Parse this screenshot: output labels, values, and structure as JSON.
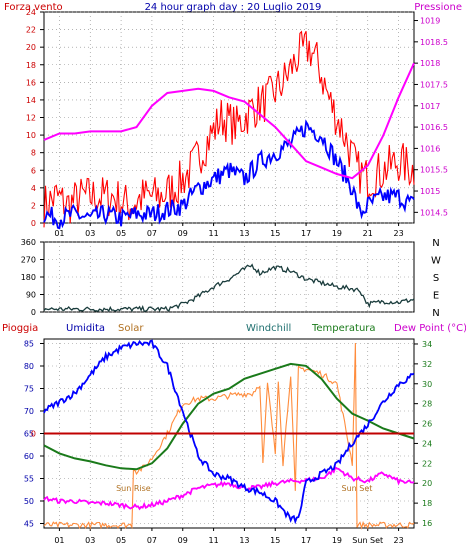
{
  "header": {
    "title": "24 hour graph day : 20 Luglio 2019",
    "left_label": "Forza vento",
    "right_label": "Pressione"
  },
  "compass_labels": [
    "N",
    "W",
    "S",
    "E",
    "N"
  ],
  "colors": {
    "frame": "#000000",
    "grid": "#888888",
    "wind": "#ff0000",
    "gust_avg": "#0000ff",
    "pressure": "#ff00ff",
    "direction": "#1a3c3c",
    "rain": "#c00000",
    "humidity": "#0000ff",
    "solar": "#ff8c3c",
    "windchill": "#207070",
    "temperature": "#1a7a1a",
    "dewpoint": "#ff00ff",
    "pioggia_label": "#cc0000",
    "umidita_label": "#0000aa",
    "solar_label": "#b07020",
    "windchill_label": "#207070",
    "temperatura_label": "#1a7a1a",
    "dewpoint_label": "#cc00cc"
  },
  "chart_data": [
    {
      "type": "line",
      "title": "24 hour graph day : 20 Luglio 2019",
      "x_tick_labels": [
        "01",
        "03",
        "05",
        "07",
        "09",
        "11",
        "13",
        "15",
        "17",
        "19",
        "21",
        "23"
      ],
      "x_range_hours": [
        0,
        24
      ],
      "left_axis": {
        "label": "Forza vento",
        "ticks": [
          "0",
          "2",
          "4",
          "6",
          "8",
          "10",
          "12",
          "14",
          "16",
          "18",
          "20",
          "22",
          "24"
        ],
        "range": [
          0,
          24
        ]
      },
      "right_axis": {
        "label": "Pressione",
        "ticks": [
          "1014.5",
          "1015",
          "1015.5",
          "1016",
          "1016.5",
          "1017",
          "1017.5",
          "1018",
          "1018.5",
          "1019"
        ],
        "range": [
          1014.25,
          1019.2
        ]
      },
      "series": [
        {
          "axis": "left",
          "color_key": "wind",
          "kind": "jagged",
          "x": [
            0,
            0.8,
            1.5,
            2.5,
            3.5,
            4.5,
            5.5,
            6.5,
            7.5,
            8.5,
            9.5,
            10.5,
            11.5,
            12.5,
            13.5,
            14.5,
            15.5,
            16.5,
            17.2,
            17.8,
            18.5,
            19.5,
            20.3,
            21,
            22,
            23,
            24
          ],
          "values": [
            2,
            3,
            2,
            3,
            3,
            3,
            2,
            3,
            3,
            4,
            6,
            9,
            12,
            11,
            13,
            14,
            16,
            19,
            20,
            18,
            14,
            10,
            6,
            5,
            6,
            7,
            6
          ]
        },
        {
          "axis": "left",
          "color_key": "gust_avg",
          "kind": "jagged",
          "x": [
            0,
            1,
            2,
            3,
            4,
            5,
            6,
            7,
            8,
            9,
            10,
            11,
            12,
            13,
            14,
            15,
            16,
            17,
            18,
            19,
            20,
            20.5,
            21,
            22,
            23,
            24
          ],
          "values": [
            1,
            0.5,
            1,
            0.5,
            1,
            0.5,
            1,
            1,
            1.5,
            2,
            4,
            5,
            6,
            5,
            7,
            8,
            9,
            11,
            10,
            7,
            4,
            1,
            2,
            3,
            3,
            2
          ]
        },
        {
          "axis": "right",
          "color_key": "pressure",
          "kind": "smooth",
          "x": [
            0,
            1,
            2,
            3,
            4,
            5,
            6,
            7,
            8,
            9,
            10,
            11,
            12,
            13,
            14,
            15,
            16,
            17,
            18,
            19,
            20,
            21,
            22,
            23,
            23.5,
            24
          ],
          "values": [
            1016.2,
            1016.35,
            1016.35,
            1016.4,
            1016.4,
            1016.4,
            1016.5,
            1017,
            1017.3,
            1017.35,
            1017.4,
            1017.35,
            1017.2,
            1017.1,
            1016.8,
            1016.5,
            1016.1,
            1015.7,
            1015.55,
            1015.4,
            1015.3,
            1015.6,
            1016.3,
            1017.2,
            1017.6,
            1018
          ]
        }
      ]
    },
    {
      "type": "line",
      "title": "",
      "x_range_hours": [
        0,
        24
      ],
      "left_axis": {
        "ticks": [
          "0",
          "90",
          "180",
          "270",
          "360"
        ],
        "range": [
          0,
          360
        ]
      },
      "right_labels": [
        "N",
        "W",
        "S",
        "E",
        "N"
      ],
      "series": [
        {
          "color_key": "direction",
          "kind": "jagged",
          "x": [
            0,
            2,
            4,
            6,
            8,
            9,
            10,
            11,
            12,
            13,
            13.5,
            14,
            15,
            16,
            17,
            18,
            19,
            20,
            20.5,
            21,
            22,
            23,
            24
          ],
          "values": [
            15,
            15,
            15,
            15,
            15,
            40,
            80,
            130,
            170,
            220,
            240,
            200,
            230,
            210,
            170,
            150,
            130,
            120,
            110,
            40,
            55,
            50,
            65
          ]
        }
      ]
    },
    {
      "type": "line",
      "title": "",
      "legend": [
        "Pioggia",
        "Umidita",
        "Solar",
        "Windchill",
        "Temperatura",
        "Dew Point (°C)"
      ],
      "x_tick_labels": [
        "01",
        "03",
        "05",
        "07",
        "09",
        "11",
        "13",
        "15",
        "17",
        "19",
        "Sun Set",
        "23"
      ],
      "x_range_hours": [
        0,
        24
      ],
      "left_axis": {
        "ticks": [
          "45",
          "50",
          "55",
          "60",
          "65",
          "70",
          "75",
          "80",
          "85"
        ],
        "range": [
          44,
          86
        ],
        "extra_tick": "0"
      },
      "right_axis": {
        "ticks": [
          "16",
          "18",
          "20",
          "22",
          "24",
          "26",
          "28",
          "30",
          "32",
          "34"
        ],
        "range": [
          15.5,
          34.5
        ]
      },
      "annotations": [
        {
          "text": "Sun Rise",
          "x": 5.8
        },
        {
          "text": "Sun Set",
          "x": 20.3
        }
      ],
      "series": [
        {
          "axis": "left",
          "color_key": "humidity",
          "kind": "jagged",
          "name": "Umidita",
          "x": [
            0,
            1,
            2,
            3,
            4,
            5,
            6,
            7,
            8,
            9,
            10,
            11,
            12,
            13,
            14,
            15,
            16,
            16.5,
            17,
            18,
            19,
            20,
            21,
            22,
            23,
            24
          ],
          "values": [
            70,
            72,
            74,
            78,
            82,
            84,
            85,
            85,
            80,
            70,
            60,
            56,
            55,
            53,
            52,
            50,
            46,
            46,
            54,
            56,
            58,
            63,
            67,
            72,
            76,
            78
          ]
        },
        {
          "axis": "right",
          "color_key": "temperature",
          "kind": "smooth",
          "name": "Temperatura",
          "x": [
            0,
            1,
            2,
            3,
            4,
            5,
            6,
            7,
            8,
            9,
            10,
            11,
            12,
            13,
            14,
            15,
            16,
            17,
            18,
            19,
            20,
            21,
            22,
            23,
            24
          ],
          "values": [
            23.8,
            23,
            22.5,
            22.2,
            21.8,
            21.5,
            21.4,
            22,
            23.5,
            26,
            28,
            29,
            29.5,
            30.5,
            31,
            31.5,
            32,
            31.8,
            30.5,
            28.5,
            27,
            26.3,
            25.5,
            25,
            24.5
          ]
        },
        {
          "axis": "right",
          "color_key": "dewpoint",
          "kind": "jagged",
          "name": "Dew Point (°C)",
          "x": [
            0,
            1,
            2,
            3,
            4,
            5,
            6,
            7,
            8,
            9,
            10,
            11,
            12,
            13,
            14,
            15,
            16,
            17,
            18,
            19,
            20,
            21,
            22,
            23,
            24
          ],
          "values": [
            18.5,
            18.2,
            18.2,
            18,
            18,
            17.8,
            17.6,
            17.8,
            18.2,
            18.8,
            19.5,
            19.8,
            20,
            19.5,
            19.6,
            20,
            20.2,
            20.3,
            20.5,
            21.5,
            20.5,
            20.2,
            21,
            20.2,
            20
          ]
        },
        {
          "axis": "right",
          "color_key": "solar",
          "kind": "jagged",
          "name": "Solar",
          "x": [
            0,
            5.7,
            5.8,
            6,
            6.5,
            7,
            8,
            9,
            10,
            11,
            12,
            13,
            13.5,
            14,
            14.2,
            14.5,
            15,
            15.2,
            15.5,
            16,
            16.3,
            16.5,
            17,
            18,
            19,
            20,
            20.2,
            20.3,
            20.4,
            21,
            24
          ],
          "values": [
            15.8,
            15.8,
            21.5,
            21.2,
            21.6,
            22.5,
            25,
            28,
            28.5,
            28.5,
            28.8,
            29,
            29,
            30,
            22,
            30,
            23,
            30.5,
            22,
            31,
            19,
            31.5,
            31.5,
            31,
            30,
            22,
            34,
            15.8,
            15.8,
            15.8,
            15.8
          ]
        }
      ],
      "rain_line": {
        "value": 0
      }
    }
  ]
}
